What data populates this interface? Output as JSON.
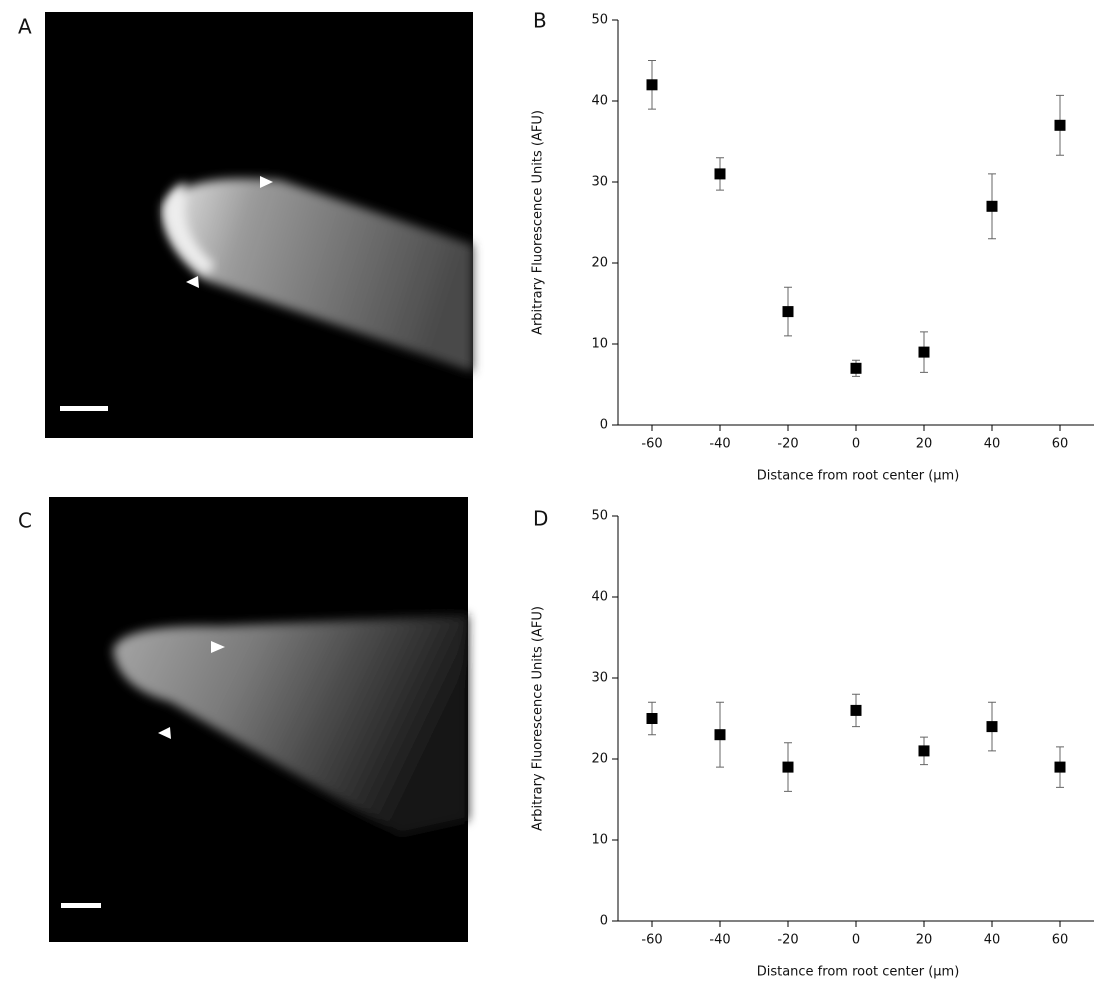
{
  "panels": [
    "A",
    "B",
    "C",
    "D"
  ],
  "chart_data": [
    {
      "type": "scatter",
      "x": [
        -60,
        -40,
        -20,
        0,
        20,
        40,
        60
      ],
      "values": [
        42,
        31,
        14,
        7,
        9,
        27,
        37
      ],
      "errors": [
        3,
        2,
        3,
        1,
        2.5,
        4,
        3.7
      ],
      "xlim": [
        -70,
        70
      ],
      "xticks": [
        -60,
        -40,
        -20,
        0,
        20,
        40,
        60
      ],
      "ylim": [
        0,
        50
      ],
      "yticks": [
        0,
        10,
        20,
        30,
        40,
        50
      ],
      "xlabel": "Distance from root center (μm)",
      "ylabel": "Arbitrary Fluorescence Units (AFU)",
      "color": "#000000"
    },
    {
      "type": "scatter",
      "x": [
        -60,
        -40,
        -20,
        0,
        20,
        40,
        60
      ],
      "values": [
        25,
        23,
        19,
        26,
        21,
        24,
        19
      ],
      "errors": [
        2,
        4,
        3,
        2,
        1.7,
        3,
        2.5
      ],
      "xlim": [
        -70,
        70
      ],
      "xticks": [
        -60,
        -40,
        -20,
        0,
        20,
        40,
        60
      ],
      "ylim": [
        0,
        50
      ],
      "yticks": [
        0,
        10,
        20,
        30,
        40,
        50
      ],
      "xlabel": "Distance from root center (μm)",
      "ylabel": "Arbitrary Fluorescence Units (AFU)",
      "color": "#000000"
    }
  ]
}
